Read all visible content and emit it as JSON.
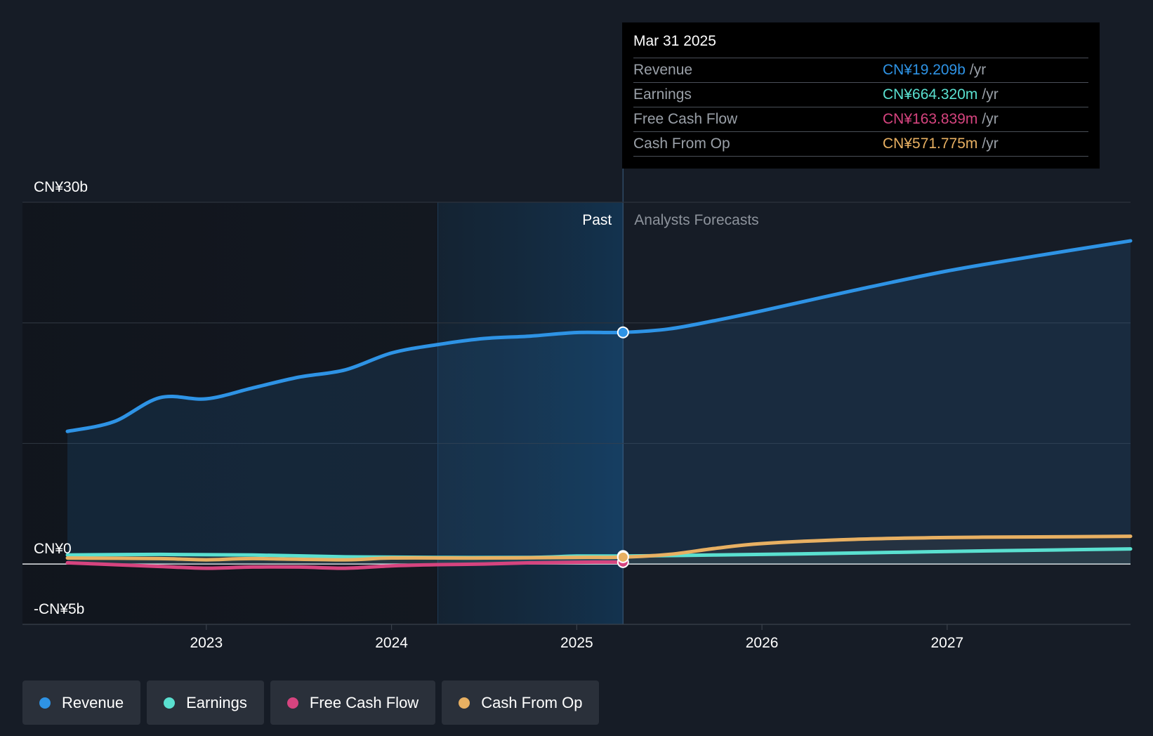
{
  "tooltip": {
    "date": "Mar 31 2025",
    "rows": [
      {
        "label": "Revenue",
        "value": "CN¥19.209b",
        "unit": "/yr",
        "color": "#2e93e5"
      },
      {
        "label": "Earnings",
        "value": "CN¥664.320m",
        "unit": "/yr",
        "color": "#5ae0d0"
      },
      {
        "label": "Free Cash Flow",
        "value": "CN¥163.839m",
        "unit": "/yr",
        "color": "#d6447f"
      },
      {
        "label": "Cash From Op",
        "value": "CN¥571.775m",
        "unit": "/yr",
        "color": "#e8b062"
      }
    ]
  },
  "legend": [
    {
      "label": "Revenue",
      "color": "#2e93e5"
    },
    {
      "label": "Earnings",
      "color": "#5ae0d0"
    },
    {
      "label": "Free Cash Flow",
      "color": "#d6447f"
    },
    {
      "label": "Cash From Op",
      "color": "#e8b062"
    }
  ],
  "chart_data": {
    "type": "line",
    "y_tick_labels": [
      {
        "value": 30,
        "label": "CN¥30b"
      },
      {
        "value": 0,
        "label": "CN¥0"
      },
      {
        "value": -5,
        "label": "-CN¥5b"
      }
    ],
    "ylim": [
      -5,
      30
    ],
    "y_gridlines": [
      30,
      20,
      10,
      0
    ],
    "x_ticks": [
      2023,
      2024,
      2025,
      2026,
      2027
    ],
    "xlim": [
      2022.25,
      2027.99
    ],
    "past_label": "Past",
    "forecast_label": "Analysts Forecasts",
    "past_end": 2025.25,
    "shaded_recent_start": 2024.25,
    "series": [
      {
        "name": "Revenue",
        "color": "#2e93e5",
        "x": [
          2022.25,
          2022.5,
          2022.75,
          2023.0,
          2023.25,
          2023.5,
          2023.75,
          2024.0,
          2024.25,
          2024.5,
          2024.75,
          2025.0,
          2025.25,
          2025.5,
          2025.75,
          2026.0,
          2026.5,
          2027.0,
          2027.5,
          2027.99
        ],
        "y": [
          11.0,
          11.8,
          13.8,
          13.7,
          14.6,
          15.5,
          16.1,
          17.5,
          18.2,
          18.7,
          18.9,
          19.2,
          19.209,
          19.5,
          20.2,
          21.0,
          22.7,
          24.3,
          25.6,
          26.8
        ]
      },
      {
        "name": "Earnings",
        "color": "#5ae0d0",
        "x": [
          2022.25,
          2022.75,
          2023.25,
          2023.75,
          2024.25,
          2024.75,
          2025.0,
          2025.25,
          2025.75,
          2026.25,
          2026.75,
          2027.25,
          2027.99
        ],
        "y": [
          0.75,
          0.8,
          0.75,
          0.6,
          0.55,
          0.55,
          0.66,
          0.664,
          0.75,
          0.85,
          0.98,
          1.1,
          1.25
        ]
      },
      {
        "name": "Free Cash Flow",
        "color": "#d6447f",
        "x": [
          2022.25,
          2022.5,
          2022.75,
          2023.0,
          2023.25,
          2023.5,
          2023.75,
          2024.0,
          2024.25,
          2024.5,
          2024.75,
          2025.0,
          2025.25
        ],
        "y": [
          0.1,
          -0.05,
          -0.2,
          -0.35,
          -0.25,
          -0.25,
          -0.35,
          -0.15,
          -0.05,
          0.0,
          0.1,
          0.15,
          0.164
        ]
      },
      {
        "name": "Cash From Op",
        "color": "#e8b062",
        "x": [
          2022.25,
          2022.75,
          2023.0,
          2023.25,
          2023.75,
          2024.0,
          2024.5,
          2025.0,
          2025.25,
          2025.5,
          2025.75,
          2026.0,
          2026.5,
          2027.0,
          2027.5,
          2027.99
        ],
        "y": [
          0.5,
          0.45,
          0.35,
          0.45,
          0.35,
          0.5,
          0.5,
          0.55,
          0.572,
          0.8,
          1.3,
          1.7,
          2.05,
          2.2,
          2.25,
          2.3
        ]
      }
    ]
  }
}
